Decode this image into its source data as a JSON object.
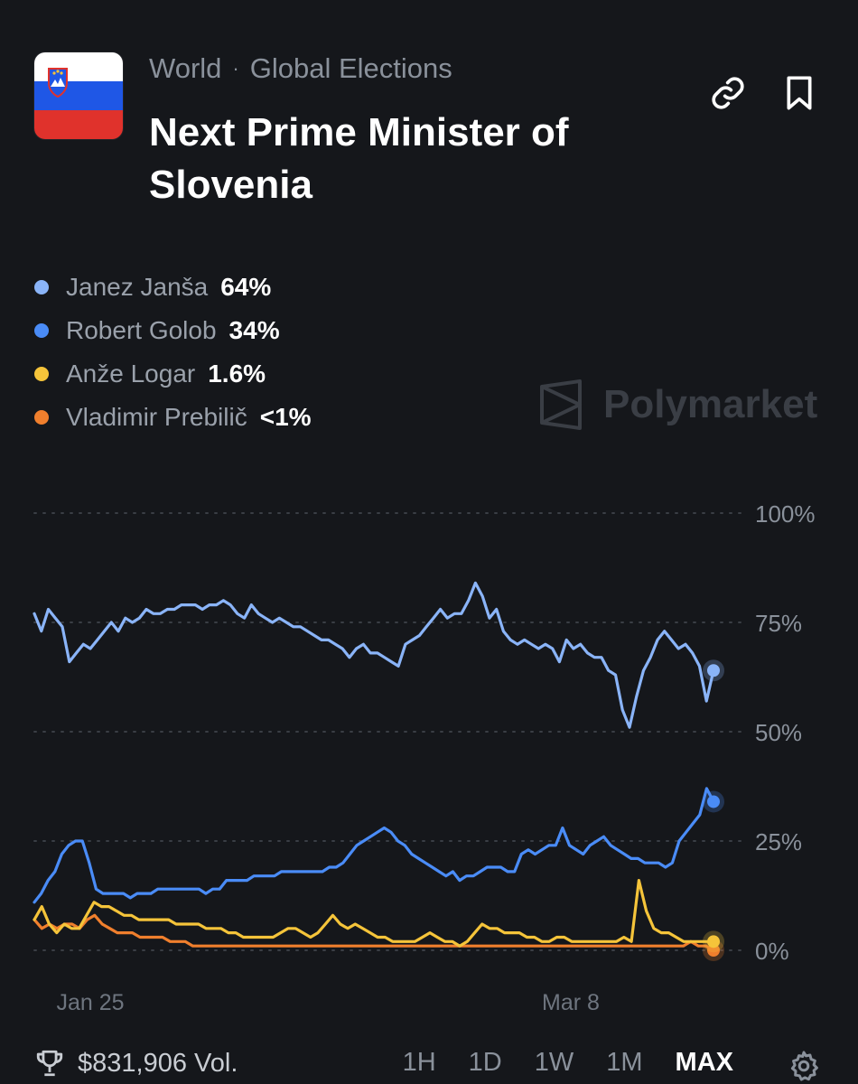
{
  "header": {
    "flag_colors": [
      "#ffffff",
      "#1f57e6",
      "#e0322c"
    ],
    "flag_icon": "slovenia-flag-icon",
    "breadcrumb": [
      "World",
      "Global Elections"
    ],
    "title": "Next Prime Minister of Slovenia",
    "link_icon": "link-icon",
    "bookmark_icon": "bookmark-icon"
  },
  "legend": [
    {
      "name": "Janez Janša",
      "pct": "64%",
      "color": "#8ab4f8"
    },
    {
      "name": "Robert Golob",
      "pct": "34%",
      "color": "#4a8cf7"
    },
    {
      "name": "Anže Logar",
      "pct": "1.6%",
      "color": "#f5c43a"
    },
    {
      "name": "Vladimir Prebilič",
      "pct": "<1%",
      "color": "#f07f2d"
    }
  ],
  "watermark": {
    "text": "Polymarket",
    "icon": "polymarket-logo-icon"
  },
  "footer": {
    "volume": "$831,906 Vol.",
    "trophy_icon": "trophy-icon",
    "ranges": [
      "1H",
      "1D",
      "1W",
      "1M",
      "MAX"
    ],
    "active_range": "MAX",
    "settings_icon": "gear-icon"
  },
  "chart_data": {
    "type": "line",
    "x_ticks": [
      "Jan 25",
      "Mar 8"
    ],
    "y_ticks": [
      "100%",
      "75%",
      "50%",
      "25%",
      "0%"
    ],
    "ylim": [
      0,
      100
    ],
    "grid": "dotted horizontal",
    "series": [
      {
        "name": "Janez Janša",
        "color": "#8ab4f8",
        "values": [
          77,
          73,
          78,
          76,
          74,
          66,
          68,
          70,
          69,
          71,
          73,
          75,
          73,
          76,
          75,
          76,
          78,
          77,
          77,
          78,
          78,
          79,
          79,
          79,
          78,
          79,
          79,
          80,
          79,
          77,
          76,
          79,
          77,
          76,
          75,
          76,
          75,
          74,
          74,
          73,
          72,
          71,
          71,
          70,
          69,
          67,
          69,
          70,
          68,
          68,
          67,
          66,
          65,
          70,
          71,
          72,
          74,
          76,
          78,
          76,
          77,
          77,
          80,
          84,
          81,
          76,
          78,
          73,
          71,
          70,
          71,
          70,
          69,
          70,
          69,
          66,
          71,
          69,
          70,
          68,
          67,
          67,
          64,
          63,
          55,
          51,
          58,
          64,
          67,
          71,
          73,
          71,
          69,
          70,
          68,
          65,
          57,
          64
        ]
      },
      {
        "name": "Robert Golob",
        "color": "#4a8cf7",
        "values": [
          11,
          13,
          16,
          18,
          22,
          24,
          25,
          25,
          20,
          14,
          13,
          13,
          13,
          13,
          12,
          13,
          13,
          13,
          14,
          14,
          14,
          14,
          14,
          14,
          14,
          13,
          14,
          14,
          16,
          16,
          16,
          16,
          17,
          17,
          17,
          17,
          18,
          18,
          18,
          18,
          18,
          18,
          18,
          19,
          19,
          20,
          22,
          24,
          25,
          26,
          27,
          28,
          27,
          25,
          24,
          22,
          21,
          20,
          19,
          18,
          17,
          18,
          16,
          17,
          17,
          18,
          19,
          19,
          19,
          18,
          18,
          22,
          23,
          22,
          23,
          24,
          24,
          28,
          24,
          23,
          22,
          24,
          25,
          26,
          24,
          23,
          22,
          21,
          21,
          20,
          20,
          20,
          19,
          20,
          25,
          27,
          29,
          31,
          37,
          34
        ]
      },
      {
        "name": "Anže Logar",
        "color": "#f5c43a",
        "values": [
          7,
          10,
          6,
          4,
          6,
          5,
          5,
          8,
          11,
          10,
          10,
          9,
          8,
          8,
          7,
          7,
          7,
          7,
          7,
          6,
          6,
          6,
          6,
          5,
          5,
          5,
          4,
          4,
          3,
          3,
          3,
          3,
          3,
          4,
          5,
          5,
          4,
          3,
          4,
          6,
          8,
          6,
          5,
          6,
          5,
          4,
          3,
          3,
          2,
          2,
          2,
          2,
          3,
          4,
          3,
          2,
          2,
          1,
          2,
          4,
          6,
          5,
          5,
          4,
          4,
          4,
          3,
          3,
          2,
          2,
          3,
          3,
          2,
          2,
          2,
          2,
          2,
          2,
          2,
          3,
          2,
          16,
          9,
          5,
          4,
          4,
          3,
          2,
          2,
          2,
          2,
          2
        ]
      },
      {
        "name": "Vladimir Prebilič",
        "color": "#f07f2d",
        "values": [
          7,
          5,
          6,
          5,
          6,
          6,
          5,
          7,
          8,
          6,
          5,
          4,
          4,
          4,
          3,
          3,
          3,
          3,
          2,
          2,
          2,
          1,
          1,
          1,
          1,
          1,
          1,
          1,
          1,
          1,
          1,
          1,
          1,
          1,
          1,
          1,
          1,
          1,
          1,
          1,
          1,
          1,
          1,
          1,
          1,
          1,
          1,
          1,
          1,
          1,
          1,
          1,
          1,
          1,
          1,
          1,
          1,
          1,
          1,
          1,
          1,
          1,
          1,
          1,
          1,
          1,
          1,
          1,
          1,
          1,
          1,
          1,
          1,
          1,
          1,
          1,
          1,
          1,
          1,
          1,
          1,
          1,
          1,
          1,
          1,
          1,
          1,
          2,
          1,
          1,
          0
        ]
      }
    ]
  }
}
